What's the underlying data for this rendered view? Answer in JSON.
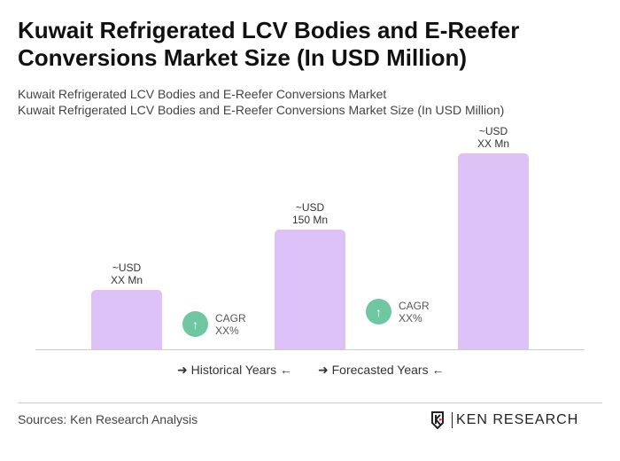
{
  "title": "Kuwait Refrigerated LCV Bodies and E-Reefer Conversions Market Size (In USD Million)",
  "subtitle1": "Kuwait Refrigerated LCV Bodies and E-Reefer Conversions Market",
  "subtitle2": "Kuwait Refrigerated LCV Bodies and E-Reefer Conversions Market Size (In USD Million)",
  "chart_data": {
    "type": "bar",
    "categories": [
      "",
      "",
      ""
    ],
    "values": [
      75,
      150,
      246
    ],
    "bar_labels": [
      [
        "~USD",
        "XX Mn"
      ],
      [
        "~USD",
        "150 Mn"
      ],
      [
        "~USD",
        "XX Mn"
      ]
    ],
    "cagr": [
      {
        "label": "CAGR",
        "value": "XX%"
      },
      {
        "label": "CAGR",
        "value": "XX%"
      }
    ],
    "legend": [
      "Historical Years",
      "Forecasted Years"
    ],
    "bar_color": "#dcc2f6",
    "cagr_color": "#6fc7a2",
    "grid": false
  },
  "source": "Sources: Ken Research Analysis",
  "logo": "KEN RESEARCH"
}
